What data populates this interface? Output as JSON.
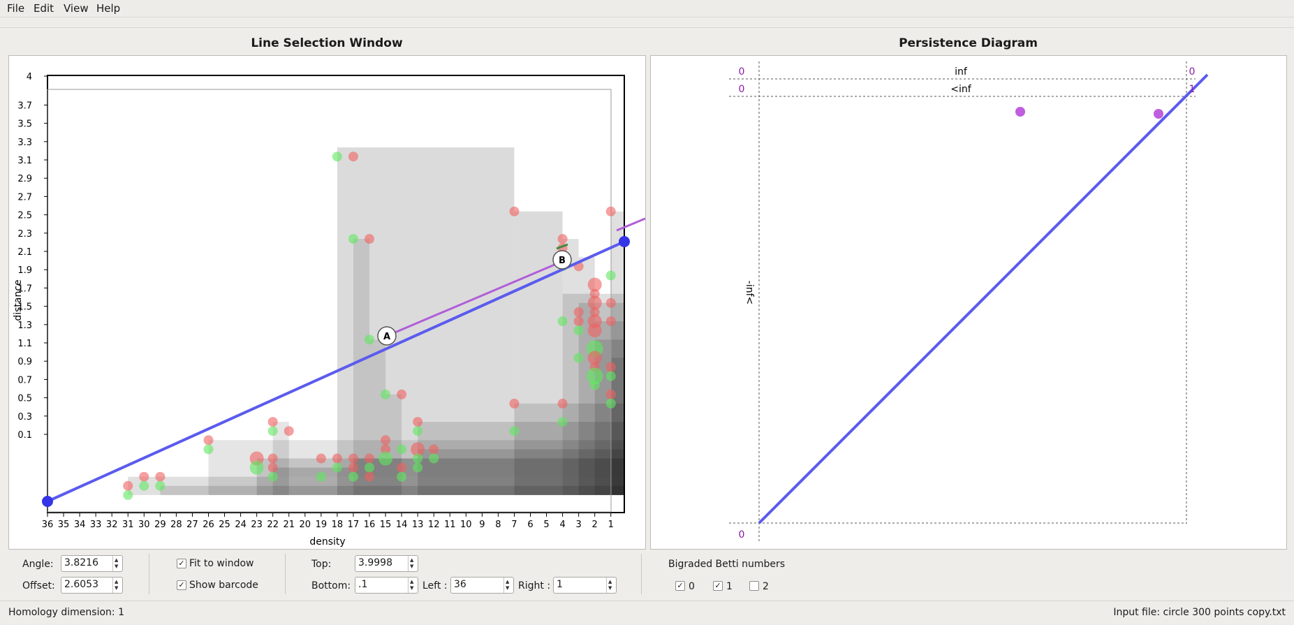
{
  "menu": {
    "file": "File",
    "edit": "Edit",
    "view": "View",
    "help": "Help"
  },
  "left_panel": {
    "title": "Line Selection Window",
    "x_axis_label": "density",
    "y_axis_label": "distance",
    "x_ticks": [
      "36",
      "35",
      "34",
      "33",
      "32",
      "31",
      "30",
      "29",
      "28",
      "27",
      "26",
      "25",
      "24",
      "23",
      "22",
      "21",
      "20",
      "19",
      "18",
      "17",
      "16",
      "15",
      "14",
      "13",
      "12",
      "11",
      "10",
      "9",
      "8",
      "7",
      "6",
      "5",
      "4",
      "3",
      "2",
      "1"
    ],
    "y_ticks": [
      "0.1",
      "0.3",
      "0.5",
      "0.7",
      "0.9",
      "1.1",
      "1.3",
      "1.5",
      "1.7",
      "1.9",
      "2.1",
      "2.3",
      "2.5",
      "2.7",
      "2.9",
      "3.1",
      "3.3",
      "3.5",
      "3.7",
      "4"
    ],
    "endpoint_a": "A",
    "endpoint_b": "B"
  },
  "right_panel": {
    "title": "Persistence Diagram",
    "label_inf": "inf",
    "label_lt_inf": "<inf",
    "label_side": "-inf<",
    "corner_top_left": "0",
    "corner_second_left": "0",
    "corner_top_right": "0",
    "corner_second_right": "1",
    "corner_bottom_left": "0"
  },
  "controls": {
    "angle_label": "Angle:",
    "angle_value": "3.8216",
    "offset_label": "Offset:",
    "offset_value": "2.6053",
    "fit_to_window": "Fit to window",
    "fit_to_window_checked": true,
    "show_barcode": "Show barcode",
    "show_barcode_checked": true,
    "top_label": "Top:",
    "top_value": "3.9998",
    "bottom_label": "Bottom:",
    "bottom_value": ".1",
    "left_label": "Left :",
    "left_value": "36",
    "right_label": "Right :",
    "right_value": "1",
    "betti_title": "Bigraded Betti numbers",
    "betti_0": "0",
    "betti_1": "1",
    "betti_2": "2",
    "betti_0_checked": true,
    "betti_1_checked": true,
    "betti_2_checked": false
  },
  "status": {
    "homology": "Homology dimension: 1",
    "input_file": "Input file: circle 300 points copy.txt"
  },
  "colors": {
    "line": "#5b5bef",
    "line_endpoint": "#3535e8",
    "barcode": "#b05ed8",
    "xi0": "#f06060",
    "xi1": "#5fe85f",
    "persistence_dot": "#c05ee0",
    "corner_label": "#8a1aa6"
  }
}
